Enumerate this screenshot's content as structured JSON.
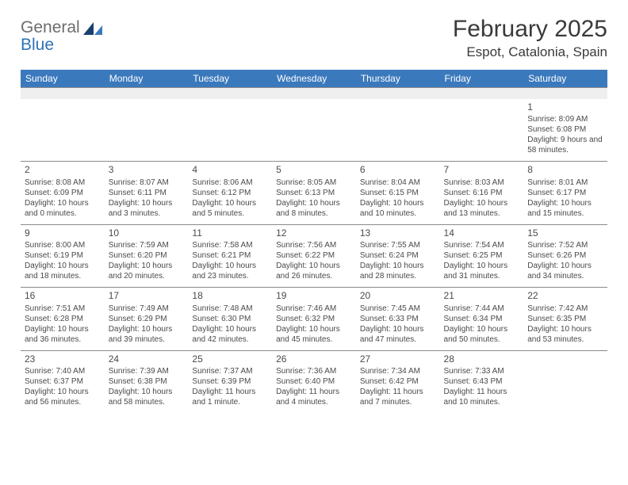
{
  "brand": {
    "general": "General",
    "blue": "Blue"
  },
  "title": "February 2025",
  "location": "Espot, Catalonia, Spain",
  "colors": {
    "header_bg": "#3b79bd",
    "header_fg": "#ffffff",
    "blank_bg": "#efefef",
    "rule": "#8a8a8a",
    "text": "#4a4a4a",
    "brand_gray": "#6d6d6d",
    "brand_blue": "#2f72b9",
    "tri_dark": "#17406d",
    "tri_light": "#3b79bd"
  },
  "days": [
    "Sunday",
    "Monday",
    "Tuesday",
    "Wednesday",
    "Thursday",
    "Friday",
    "Saturday"
  ],
  "weeks": [
    [
      null,
      null,
      null,
      null,
      null,
      null,
      {
        "n": "1",
        "sr": "Sunrise: 8:09 AM",
        "ss": "Sunset: 6:08 PM",
        "dl": "Daylight: 9 hours and 58 minutes."
      }
    ],
    [
      {
        "n": "2",
        "sr": "Sunrise: 8:08 AM",
        "ss": "Sunset: 6:09 PM",
        "dl": "Daylight: 10 hours and 0 minutes."
      },
      {
        "n": "3",
        "sr": "Sunrise: 8:07 AM",
        "ss": "Sunset: 6:11 PM",
        "dl": "Daylight: 10 hours and 3 minutes."
      },
      {
        "n": "4",
        "sr": "Sunrise: 8:06 AM",
        "ss": "Sunset: 6:12 PM",
        "dl": "Daylight: 10 hours and 5 minutes."
      },
      {
        "n": "5",
        "sr": "Sunrise: 8:05 AM",
        "ss": "Sunset: 6:13 PM",
        "dl": "Daylight: 10 hours and 8 minutes."
      },
      {
        "n": "6",
        "sr": "Sunrise: 8:04 AM",
        "ss": "Sunset: 6:15 PM",
        "dl": "Daylight: 10 hours and 10 minutes."
      },
      {
        "n": "7",
        "sr": "Sunrise: 8:03 AM",
        "ss": "Sunset: 6:16 PM",
        "dl": "Daylight: 10 hours and 13 minutes."
      },
      {
        "n": "8",
        "sr": "Sunrise: 8:01 AM",
        "ss": "Sunset: 6:17 PM",
        "dl": "Daylight: 10 hours and 15 minutes."
      }
    ],
    [
      {
        "n": "9",
        "sr": "Sunrise: 8:00 AM",
        "ss": "Sunset: 6:19 PM",
        "dl": "Daylight: 10 hours and 18 minutes."
      },
      {
        "n": "10",
        "sr": "Sunrise: 7:59 AM",
        "ss": "Sunset: 6:20 PM",
        "dl": "Daylight: 10 hours and 20 minutes."
      },
      {
        "n": "11",
        "sr": "Sunrise: 7:58 AM",
        "ss": "Sunset: 6:21 PM",
        "dl": "Daylight: 10 hours and 23 minutes."
      },
      {
        "n": "12",
        "sr": "Sunrise: 7:56 AM",
        "ss": "Sunset: 6:22 PM",
        "dl": "Daylight: 10 hours and 26 minutes."
      },
      {
        "n": "13",
        "sr": "Sunrise: 7:55 AM",
        "ss": "Sunset: 6:24 PM",
        "dl": "Daylight: 10 hours and 28 minutes."
      },
      {
        "n": "14",
        "sr": "Sunrise: 7:54 AM",
        "ss": "Sunset: 6:25 PM",
        "dl": "Daylight: 10 hours and 31 minutes."
      },
      {
        "n": "15",
        "sr": "Sunrise: 7:52 AM",
        "ss": "Sunset: 6:26 PM",
        "dl": "Daylight: 10 hours and 34 minutes."
      }
    ],
    [
      {
        "n": "16",
        "sr": "Sunrise: 7:51 AM",
        "ss": "Sunset: 6:28 PM",
        "dl": "Daylight: 10 hours and 36 minutes."
      },
      {
        "n": "17",
        "sr": "Sunrise: 7:49 AM",
        "ss": "Sunset: 6:29 PM",
        "dl": "Daylight: 10 hours and 39 minutes."
      },
      {
        "n": "18",
        "sr": "Sunrise: 7:48 AM",
        "ss": "Sunset: 6:30 PM",
        "dl": "Daylight: 10 hours and 42 minutes."
      },
      {
        "n": "19",
        "sr": "Sunrise: 7:46 AM",
        "ss": "Sunset: 6:32 PM",
        "dl": "Daylight: 10 hours and 45 minutes."
      },
      {
        "n": "20",
        "sr": "Sunrise: 7:45 AM",
        "ss": "Sunset: 6:33 PM",
        "dl": "Daylight: 10 hours and 47 minutes."
      },
      {
        "n": "21",
        "sr": "Sunrise: 7:44 AM",
        "ss": "Sunset: 6:34 PM",
        "dl": "Daylight: 10 hours and 50 minutes."
      },
      {
        "n": "22",
        "sr": "Sunrise: 7:42 AM",
        "ss": "Sunset: 6:35 PM",
        "dl": "Daylight: 10 hours and 53 minutes."
      }
    ],
    [
      {
        "n": "23",
        "sr": "Sunrise: 7:40 AM",
        "ss": "Sunset: 6:37 PM",
        "dl": "Daylight: 10 hours and 56 minutes."
      },
      {
        "n": "24",
        "sr": "Sunrise: 7:39 AM",
        "ss": "Sunset: 6:38 PM",
        "dl": "Daylight: 10 hours and 58 minutes."
      },
      {
        "n": "25",
        "sr": "Sunrise: 7:37 AM",
        "ss": "Sunset: 6:39 PM",
        "dl": "Daylight: 11 hours and 1 minute."
      },
      {
        "n": "26",
        "sr": "Sunrise: 7:36 AM",
        "ss": "Sunset: 6:40 PM",
        "dl": "Daylight: 11 hours and 4 minutes."
      },
      {
        "n": "27",
        "sr": "Sunrise: 7:34 AM",
        "ss": "Sunset: 6:42 PM",
        "dl": "Daylight: 11 hours and 7 minutes."
      },
      {
        "n": "28",
        "sr": "Sunrise: 7:33 AM",
        "ss": "Sunset: 6:43 PM",
        "dl": "Daylight: 11 hours and 10 minutes."
      },
      null
    ]
  ]
}
